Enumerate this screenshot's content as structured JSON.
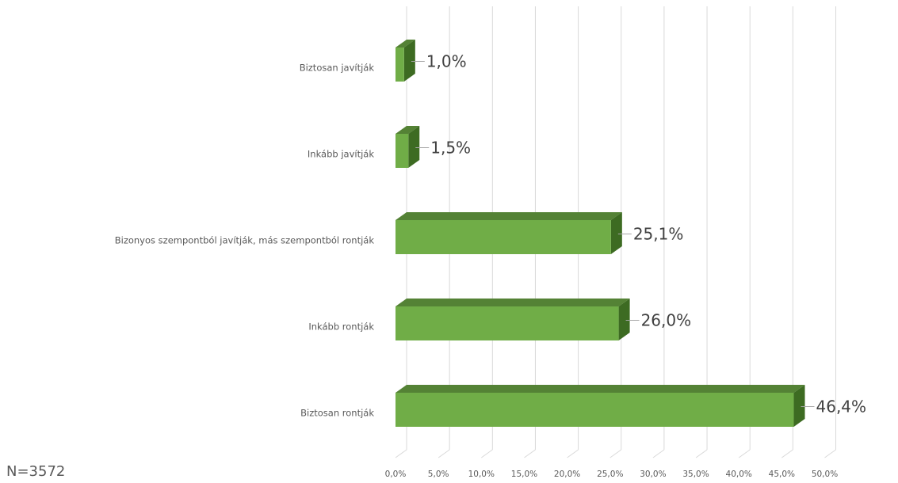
{
  "chart_data": {
    "type": "bar",
    "orientation": "horizontal",
    "style": "3d",
    "categories": [
      "Biztosan javítják",
      "Inkább javítják",
      "Bizonyos szempontból javítják, más szempontból rontják",
      "Inkább rontják",
      "Biztosan rontják"
    ],
    "values": [
      1.0,
      1.5,
      25.1,
      26.0,
      46.4
    ],
    "value_labels": [
      "1,0%",
      "1,5%",
      "25,1%",
      "26,0%",
      "46,4%"
    ],
    "xlim": [
      0,
      50
    ],
    "x_ticks": [
      "0,0%",
      "5,0%",
      "10,0%",
      "15,0%",
      "20,0%",
      "25,0%",
      "30,0%",
      "35,0%",
      "40,0%",
      "45,0%",
      "50,0%"
    ],
    "grid": true,
    "legend": "none",
    "colors": {
      "front": "#70ad47",
      "top": "#548235",
      "side": "#3d6b22",
      "grid": "#d9d9d9",
      "leader": "#a6a6a6"
    }
  },
  "note": "N=3572"
}
